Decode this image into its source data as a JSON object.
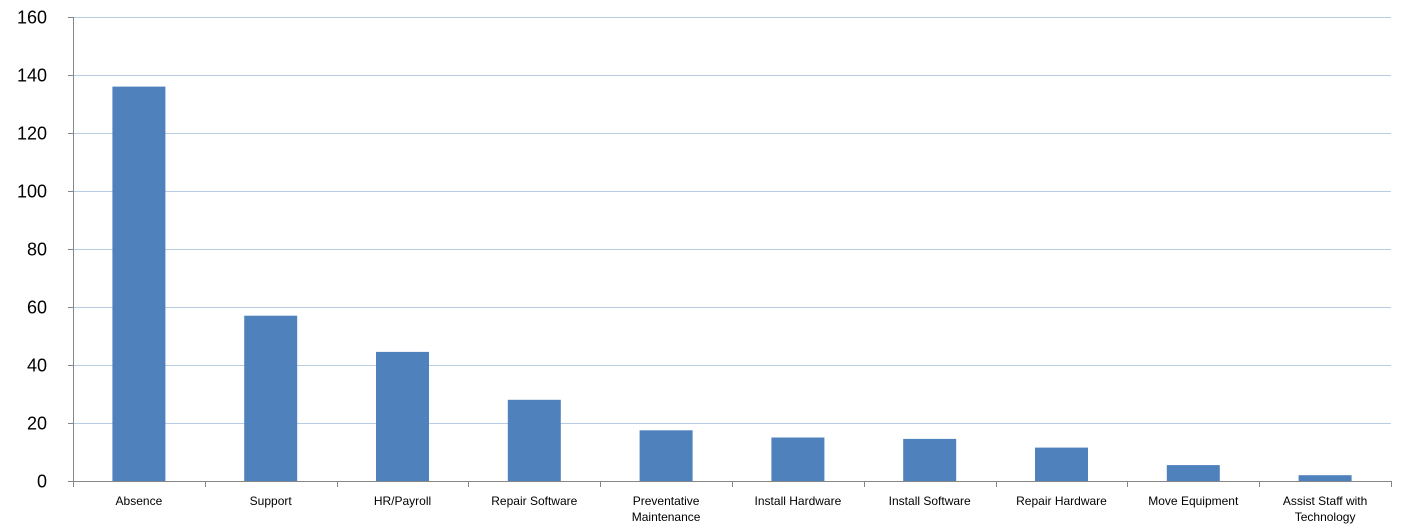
{
  "chart_data": {
    "type": "bar",
    "title": "",
    "xlabel": "",
    "ylabel": "",
    "categories": [
      "Absence",
      "Support",
      "HR/Payroll",
      "Repair Software",
      "Preventative Maintenance",
      "Install Hardware",
      "Install Software",
      "Repair Hardware",
      "Move Equipment",
      "Assist Staff with Technology"
    ],
    "category_lines": [
      [
        "Absence"
      ],
      [
        "Support"
      ],
      [
        "HR/Payroll"
      ],
      [
        "Repair Software"
      ],
      [
        "Preventative",
        "Maintenance"
      ],
      [
        "Install Hardware"
      ],
      [
        "Install Software"
      ],
      [
        "Repair Hardware"
      ],
      [
        "Move Equipment"
      ],
      [
        "Assist Staff with",
        "Technology"
      ]
    ],
    "values": [
      136,
      57,
      44.5,
      28,
      17.5,
      15,
      14.5,
      11.5,
      5.5,
      2
    ],
    "ylim": [
      0,
      160
    ],
    "yticks": [
      0,
      20,
      40,
      60,
      80,
      100,
      120,
      140,
      160
    ],
    "grid": true,
    "legend": "none",
    "colors": {
      "bar": "#4f81bd",
      "gridline": "#b8cce4",
      "axis": "#868686"
    }
  }
}
